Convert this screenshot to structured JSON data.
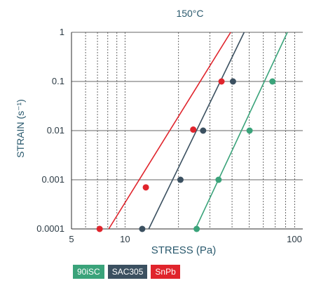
{
  "chart_data": {
    "type": "scatter",
    "title": "150°C",
    "xlabel": "STRESS (Pa)",
    "ylabel": "STRAIN (s⁻¹)",
    "x_scale": "log",
    "y_scale": "log",
    "xlim": [
      5,
      100
    ],
    "ylim": [
      0.0001,
      1
    ],
    "x_tick_labels": [
      "5",
      "10",
      "100"
    ],
    "y_tick_labels": [
      "0.0001",
      "0.001",
      "0.01",
      "0.1",
      "1"
    ],
    "y_ticks": [
      0.0001,
      0.001,
      0.01,
      0.1,
      1
    ],
    "x_ticks": [
      5,
      10,
      100
    ],
    "grid": true,
    "legend_position": "bottom-left",
    "series": [
      {
        "name": "90iSC",
        "color": "#3aa37a",
        "points": [
          {
            "x": 25.3,
            "y": 0.0001
          },
          {
            "x": 33.6,
            "y": 0.001
          },
          {
            "x": 50.2,
            "y": 0.01
          },
          {
            "x": 67.5,
            "y": 0.1
          }
        ],
        "fit": [
          {
            "x": 24.9,
            "y": 0.0001
          },
          {
            "x": 81.9,
            "y": 1
          }
        ]
      },
      {
        "name": "SAC305",
        "color": "#3b5060",
        "points": [
          {
            "x": 12.5,
            "y": 0.0001
          },
          {
            "x": 20.5,
            "y": 0.001
          },
          {
            "x": 27.5,
            "y": 0.01
          },
          {
            "x": 40.5,
            "y": 0.1
          }
        ],
        "fit": [
          {
            "x": 13.6,
            "y": 0.0001
          },
          {
            "x": 46.8,
            "y": 1
          }
        ]
      },
      {
        "name": "SnPb",
        "color": "#e0242c",
        "points": [
          {
            "x": 7.2,
            "y": 0.0001
          },
          {
            "x": 13.1,
            "y": 0.0007
          },
          {
            "x": 24.2,
            "y": 0.0105
          },
          {
            "x": 34.9,
            "y": 0.1
          }
        ],
        "fit": [
          {
            "x": 8.1,
            "y": 0.0001
          },
          {
            "x": 39.3,
            "y": 1
          }
        ]
      }
    ]
  }
}
